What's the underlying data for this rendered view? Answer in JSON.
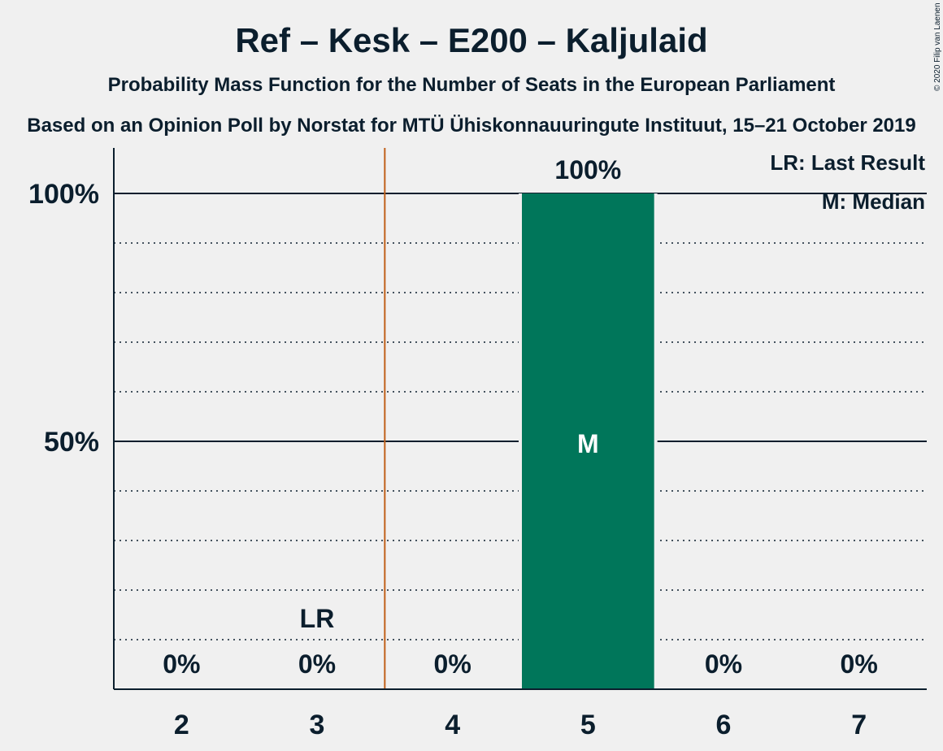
{
  "copyright": "© 2020 Filip van Laenen",
  "chart_data": {
    "type": "bar",
    "title": "Ref – Kesk – E200 – Kaljulaid",
    "subtitle": "Probability Mass Function for the Number of Seats in the European Parliament",
    "subtitle2": "Based on an Opinion Poll by Norstat for MTÜ Ühiskonnauuringute Instituut, 15–21 October 2019",
    "xlabel": "",
    "ylabel": "",
    "categories": [
      "2",
      "3",
      "4",
      "5",
      "6",
      "7"
    ],
    "values": [
      0,
      0,
      0,
      100,
      0,
      0
    ],
    "value_labels": [
      "0%",
      "0%",
      "0%",
      "100%",
      "0%",
      "0%"
    ],
    "ylim": [
      0,
      100
    ],
    "yticks": [
      {
        "value": 50,
        "label": "50%"
      },
      {
        "value": 100,
        "label": "100%"
      }
    ],
    "minor_gridlines": [
      10,
      20,
      30,
      40,
      60,
      70,
      80,
      90
    ],
    "bar_color": "#00765a",
    "last_result_line_color": "#c0601a",
    "last_result_seats": 3,
    "last_result_label": "LR",
    "median_seats": 5,
    "median_label": "M",
    "legend": [
      "LR: Last Result",
      "M: Median"
    ],
    "legend_position": "top-right"
  }
}
